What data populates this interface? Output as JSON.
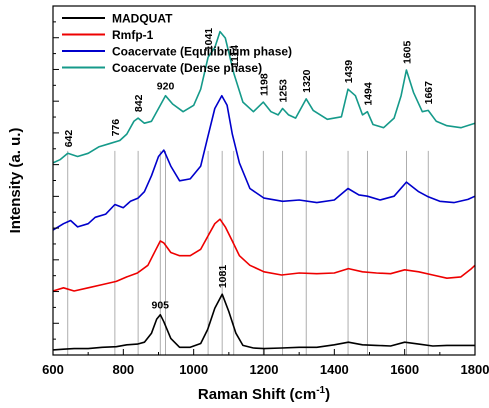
{
  "chart_data": {
    "type": "line",
    "xlabel": "Raman Shift (cm",
    "xlabel_sup": "-1",
    "xlabel_end": ")",
    "ylabel": "Intensity (a. u.)",
    "xlim": [
      600,
      1800
    ],
    "x_ticks": [
      600,
      800,
      1000,
      1200,
      1400,
      1600,
      1800
    ],
    "y_ticks_shown": false,
    "grid": false,
    "legend_position": "top-left",
    "series": [
      {
        "name": "MADQUAT",
        "color": "#000000",
        "points": [
          [
            600,
            0.08
          ],
          [
            630,
            0.09
          ],
          [
            660,
            0.1
          ],
          [
            700,
            0.1
          ],
          [
            740,
            0.12
          ],
          [
            780,
            0.13
          ],
          [
            810,
            0.16
          ],
          [
            840,
            0.17
          ],
          [
            860,
            0.2
          ],
          [
            880,
            0.34
          ],
          [
            895,
            0.56
          ],
          [
            905,
            0.63
          ],
          [
            915,
            0.52
          ],
          [
            935,
            0.26
          ],
          [
            960,
            0.12
          ],
          [
            990,
            0.12
          ],
          [
            1020,
            0.18
          ],
          [
            1040,
            0.4
          ],
          [
            1060,
            0.73
          ],
          [
            1081,
            0.95
          ],
          [
            1100,
            0.68
          ],
          [
            1120,
            0.34
          ],
          [
            1140,
            0.15
          ],
          [
            1170,
            0.11
          ],
          [
            1200,
            0.1
          ],
          [
            1250,
            0.11
          ],
          [
            1300,
            0.12
          ],
          [
            1350,
            0.12
          ],
          [
            1400,
            0.16
          ],
          [
            1440,
            0.2
          ],
          [
            1480,
            0.16
          ],
          [
            1520,
            0.15
          ],
          [
            1560,
            0.14
          ],
          [
            1600,
            0.2
          ],
          [
            1640,
            0.17
          ],
          [
            1680,
            0.14
          ],
          [
            1720,
            0.15
          ],
          [
            1760,
            0.15
          ],
          [
            1800,
            0.15
          ]
        ]
      },
      {
        "name": "Rmfp-1",
        "color": "#ee0000",
        "points": [
          [
            600,
            1.0
          ],
          [
            630,
            1.05
          ],
          [
            660,
            1.0
          ],
          [
            700,
            1.05
          ],
          [
            740,
            1.1
          ],
          [
            780,
            1.15
          ],
          [
            810,
            1.22
          ],
          [
            840,
            1.28
          ],
          [
            870,
            1.4
          ],
          [
            890,
            1.62
          ],
          [
            905,
            1.78
          ],
          [
            915,
            1.75
          ],
          [
            935,
            1.6
          ],
          [
            960,
            1.55
          ],
          [
            990,
            1.55
          ],
          [
            1020,
            1.65
          ],
          [
            1040,
            1.85
          ],
          [
            1060,
            2.05
          ],
          [
            1075,
            2.12
          ],
          [
            1090,
            2.0
          ],
          [
            1110,
            1.78
          ],
          [
            1130,
            1.55
          ],
          [
            1160,
            1.4
          ],
          [
            1200,
            1.3
          ],
          [
            1250,
            1.25
          ],
          [
            1300,
            1.28
          ],
          [
            1350,
            1.27
          ],
          [
            1400,
            1.28
          ],
          [
            1440,
            1.35
          ],
          [
            1480,
            1.3
          ],
          [
            1520,
            1.28
          ],
          [
            1560,
            1.27
          ],
          [
            1600,
            1.33
          ],
          [
            1640,
            1.3
          ],
          [
            1680,
            1.25
          ],
          [
            1720,
            1.2
          ],
          [
            1760,
            1.22
          ],
          [
            1790,
            1.35
          ],
          [
            1800,
            1.4
          ]
        ]
      },
      {
        "name": "Coacervate (Equilibrium phase)",
        "color": "#0000cc",
        "points": [
          [
            600,
            1.95
          ],
          [
            630,
            2.05
          ],
          [
            650,
            2.1
          ],
          [
            670,
            2.0
          ],
          [
            700,
            2.05
          ],
          [
            720,
            2.15
          ],
          [
            750,
            2.2
          ],
          [
            776,
            2.35
          ],
          [
            800,
            2.3
          ],
          [
            820,
            2.4
          ],
          [
            842,
            2.45
          ],
          [
            860,
            2.55
          ],
          [
            880,
            2.8
          ],
          [
            900,
            3.1
          ],
          [
            915,
            3.2
          ],
          [
            935,
            2.95
          ],
          [
            960,
            2.72
          ],
          [
            990,
            2.75
          ],
          [
            1020,
            2.95
          ],
          [
            1040,
            3.4
          ],
          [
            1060,
            3.85
          ],
          [
            1080,
            4.05
          ],
          [
            1095,
            3.9
          ],
          [
            1110,
            3.45
          ],
          [
            1130,
            3.0
          ],
          [
            1160,
            2.6
          ],
          [
            1200,
            2.45
          ],
          [
            1253,
            2.4
          ],
          [
            1300,
            2.42
          ],
          [
            1350,
            2.38
          ],
          [
            1400,
            2.42
          ],
          [
            1439,
            2.6
          ],
          [
            1470,
            2.5
          ],
          [
            1494,
            2.48
          ],
          [
            1530,
            2.42
          ],
          [
            1570,
            2.48
          ],
          [
            1605,
            2.7
          ],
          [
            1640,
            2.55
          ],
          [
            1667,
            2.47
          ],
          [
            1700,
            2.4
          ],
          [
            1740,
            2.38
          ],
          [
            1780,
            2.43
          ],
          [
            1800,
            2.48
          ]
        ]
      },
      {
        "name": "Coacervate (Dense phase)",
        "color": "#159a8a",
        "points": [
          [
            600,
            3.0
          ],
          [
            620,
            3.05
          ],
          [
            642,
            3.15
          ],
          [
            670,
            3.1
          ],
          [
            700,
            3.15
          ],
          [
            730,
            3.25
          ],
          [
            760,
            3.3
          ],
          [
            790,
            3.35
          ],
          [
            810,
            3.45
          ],
          [
            830,
            3.65
          ],
          [
            842,
            3.7
          ],
          [
            860,
            3.62
          ],
          [
            880,
            3.65
          ],
          [
            905,
            3.9
          ],
          [
            920,
            4.05
          ],
          [
            940,
            3.92
          ],
          [
            970,
            3.8
          ],
          [
            1000,
            3.9
          ],
          [
            1020,
            4.15
          ],
          [
            1041,
            4.65
          ],
          [
            1060,
            4.8
          ],
          [
            1075,
            5.05
          ],
          [
            1090,
            4.95
          ],
          [
            1114,
            4.4
          ],
          [
            1140,
            3.95
          ],
          [
            1170,
            3.8
          ],
          [
            1198,
            3.95
          ],
          [
            1220,
            3.8
          ],
          [
            1240,
            3.75
          ],
          [
            1253,
            3.85
          ],
          [
            1270,
            3.75
          ],
          [
            1290,
            3.7
          ],
          [
            1320,
            4.0
          ],
          [
            1340,
            3.82
          ],
          [
            1380,
            3.68
          ],
          [
            1420,
            3.72
          ],
          [
            1439,
            4.15
          ],
          [
            1460,
            4.05
          ],
          [
            1480,
            3.75
          ],
          [
            1494,
            3.8
          ],
          [
            1510,
            3.6
          ],
          [
            1540,
            3.55
          ],
          [
            1570,
            3.7
          ],
          [
            1590,
            4.05
          ],
          [
            1605,
            4.45
          ],
          [
            1625,
            4.1
          ],
          [
            1650,
            3.8
          ],
          [
            1667,
            3.82
          ],
          [
            1690,
            3.65
          ],
          [
            1720,
            3.58
          ],
          [
            1760,
            3.55
          ],
          [
            1800,
            3.62
          ]
        ]
      }
    ],
    "peak_markers": [
      642,
      776,
      842,
      905,
      920,
      1041,
      1081,
      1114,
      1198,
      1253,
      1320,
      1439,
      1494,
      1605,
      1667
    ],
    "peak_labels": [
      {
        "text": "642",
        "x": 642,
        "y": 3.15,
        "vertical": true
      },
      {
        "text": "776",
        "x": 776,
        "y": 3.32,
        "vertical": true
      },
      {
        "text": "842",
        "x": 842,
        "y": 3.7,
        "vertical": true
      },
      {
        "text": "905",
        "x": 905,
        "y": 0.63,
        "vertical": false
      },
      {
        "text": "920",
        "x": 920,
        "y": 4.05,
        "vertical": false
      },
      {
        "text": "1041",
        "x": 1041,
        "y": 4.65,
        "vertical": true
      },
      {
        "text": "1081",
        "x": 1081,
        "y": 0.95,
        "vertical": true
      },
      {
        "text": "1114",
        "x": 1114,
        "y": 4.4,
        "vertical": true
      },
      {
        "text": "1198",
        "x": 1198,
        "y": 3.95,
        "vertical": true
      },
      {
        "text": "1253",
        "x": 1253,
        "y": 3.85,
        "vertical": true
      },
      {
        "text": "1320",
        "x": 1320,
        "y": 4.0,
        "vertical": true
      },
      {
        "text": "1439",
        "x": 1439,
        "y": 4.15,
        "vertical": true
      },
      {
        "text": "1494",
        "x": 1494,
        "y": 3.8,
        "vertical": true
      },
      {
        "text": "1605",
        "x": 1605,
        "y": 4.45,
        "vertical": true
      },
      {
        "text": "1667",
        "x": 1667,
        "y": 3.82,
        "vertical": true
      }
    ]
  }
}
